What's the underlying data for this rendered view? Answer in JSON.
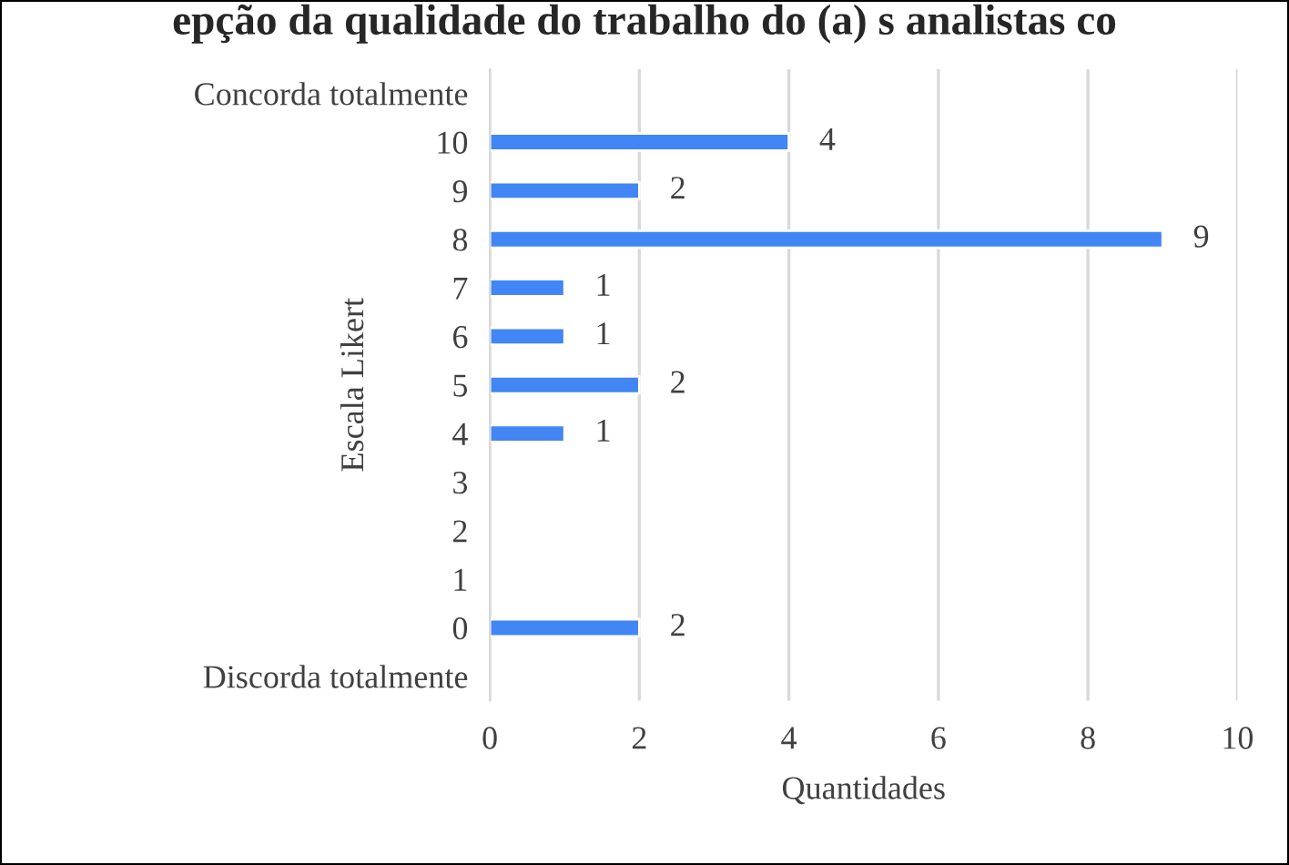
{
  "chart_data": {
    "type": "bar",
    "orientation": "horizontal",
    "title": "epção da qualidade do trabalho do (a) s analistas co",
    "xlabel": "Quantidades",
    "ylabel": "Escala Likert",
    "categories": [
      "Concorda totalmente",
      "10",
      "9",
      "8",
      "7",
      "6",
      "5",
      "4",
      "3",
      "2",
      "1",
      "0",
      "Discorda totalmente"
    ],
    "values": [
      null,
      4,
      2,
      9,
      1,
      1,
      2,
      1,
      null,
      null,
      null,
      2,
      null
    ],
    "color": "#4285f4",
    "xlim": [
      0,
      10
    ],
    "xticks": [
      0,
      2,
      4,
      6,
      8,
      10
    ],
    "grid": "x",
    "data_labels": true,
    "legend": false
  }
}
